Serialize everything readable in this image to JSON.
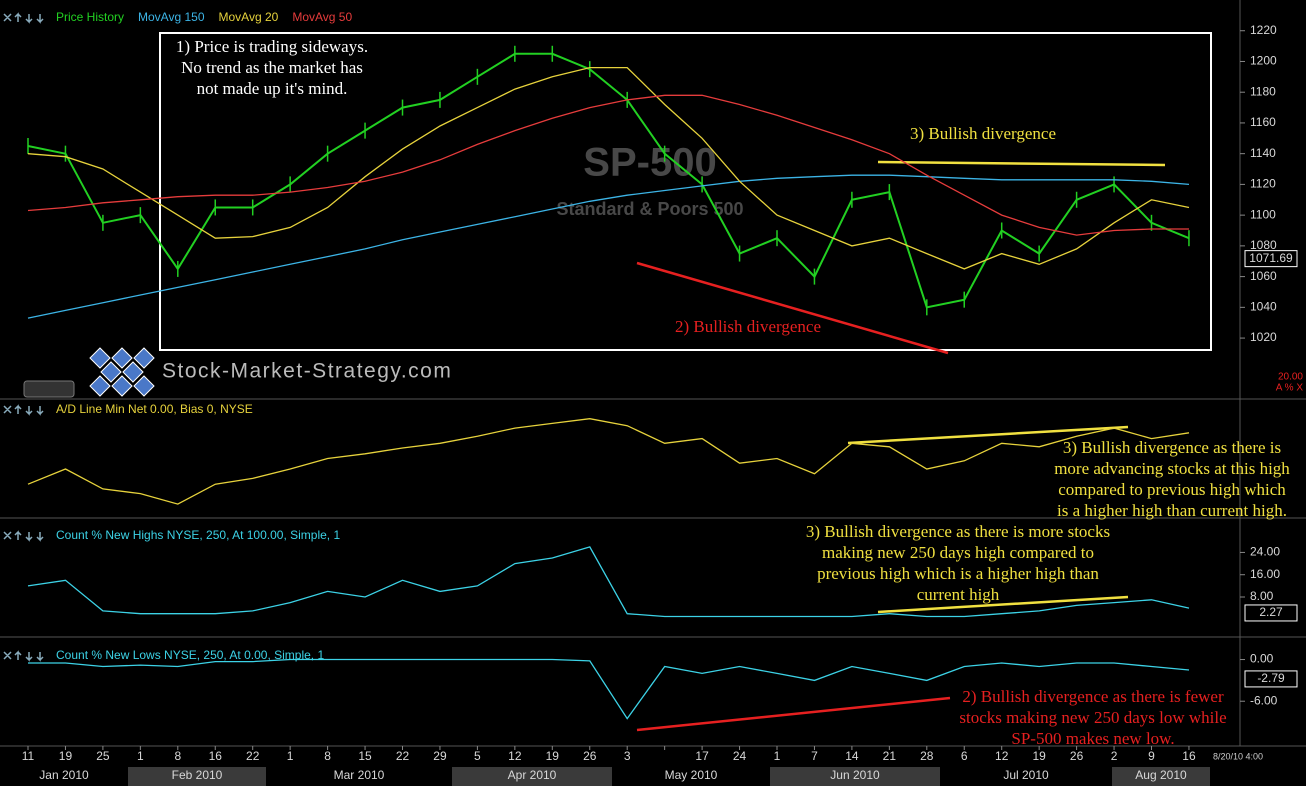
{
  "chart_data": [
    {
      "type": "line",
      "categories": [
        "11",
        "19",
        "25",
        "1",
        "8",
        "16",
        "22",
        "1",
        "8",
        "15",
        "22",
        "29",
        "5",
        "12",
        "19",
        "26",
        "3",
        null,
        "17",
        "24",
        "1",
        "7",
        "14",
        "21",
        "28",
        "6",
        "12",
        "19",
        "26",
        "2",
        "9",
        "16"
      ],
      "x_groups": [
        "Jan 2010",
        "Feb 2010",
        "Mar 2010",
        "Apr 2010",
        "May 2010",
        "Jun 2010",
        "Jul 2010",
        "Aug 2010"
      ],
      "timestamp": "8/20/10 4:00",
      "watermark": "SP-500",
      "subtitle": "Standard & Poors 500",
      "branding": "Stock-Market-Strategy.com",
      "scale_corner": [
        "20.00",
        "A % X"
      ],
      "ylim": [
        981,
        1240
      ],
      "yticks": [
        1020,
        1040,
        1060,
        1080,
        1100,
        1120,
        1140,
        1160,
        1180,
        1200,
        1220
      ],
      "last_value": 1071.69,
      "series": [
        {
          "name": "Price History",
          "color": "#22d022",
          "values": [
            1145,
            1140,
            1095,
            1100,
            1065,
            1105,
            1105,
            1120,
            1140,
            1155,
            1170,
            1175,
            1190,
            1205,
            1205,
            1195,
            1175,
            1140,
            1120,
            1075,
            1085,
            1060,
            1110,
            1115,
            1040,
            1045,
            1090,
            1075,
            1110,
            1120,
            1095,
            1085
          ]
        },
        {
          "name": "MovAvg 150",
          "color": "#3cb4e6",
          "values": [
            1033,
            1038,
            1043,
            1048,
            1053,
            1058,
            1063,
            1068,
            1073,
            1078,
            1084,
            1089,
            1094,
            1099,
            1104,
            1109,
            1113,
            1116,
            1119,
            1122,
            1124,
            1125,
            1126,
            1126,
            1125,
            1124,
            1123,
            1123,
            1123,
            1123,
            1122,
            1120
          ]
        },
        {
          "name": "MovAvg 20",
          "color": "#e6d23c",
          "values": [
            1140,
            1138,
            1130,
            1115,
            1100,
            1085,
            1086,
            1092,
            1105,
            1125,
            1143,
            1158,
            1170,
            1182,
            1190,
            1196,
            1196,
            1172,
            1150,
            1122,
            1100,
            1090,
            1080,
            1085,
            1075,
            1065,
            1075,
            1068,
            1078,
            1095,
            1110,
            1105
          ]
        },
        {
          "name": "MovAvg 50",
          "color": "#e63c3c",
          "values": [
            1103,
            1105,
            1108,
            1110,
            1112,
            1113,
            1113,
            1115,
            1118,
            1122,
            1128,
            1136,
            1146,
            1155,
            1163,
            1170,
            1175,
            1178,
            1178,
            1172,
            1165,
            1157,
            1149,
            1140,
            1126,
            1113,
            1100,
            1092,
            1087,
            1090,
            1091,
            1091
          ]
        }
      ],
      "annotations": [
        {
          "color": "#ffffff",
          "lines": [
            "1) Price is trading sideways.",
            "No trend as the market has",
            "not made up it's mind."
          ]
        },
        {
          "color": "#f0e040",
          "lines": [
            "3) Bullish divergence"
          ]
        },
        {
          "color": "#e62020",
          "lines": [
            "2) Bullish divergence"
          ]
        }
      ]
    },
    {
      "type": "line",
      "title": "A/D Line Min Net 0.00, Bias 0, NYSE",
      "ylim": [
        0,
        100
      ],
      "series": [
        {
          "name": "A/D Line",
          "color": "#e6d23c",
          "values": [
            28,
            41,
            24,
            20,
            11,
            28,
            33,
            41,
            50,
            54,
            59,
            63,
            69,
            76,
            80,
            84,
            78,
            63,
            67,
            46,
            50,
            37,
            63,
            60,
            41,
            48,
            63,
            60,
            69,
            76,
            67,
            72
          ]
        }
      ],
      "annotations": [
        {
          "color": "#f0e040",
          "lines": [
            "3) Bullish divergence as there is",
            "more advancing stocks at this high",
            "compared to previous high which",
            "is a higher high than current high."
          ]
        }
      ]
    },
    {
      "type": "line",
      "title": "Count % New Highs NYSE, 250, At 100.00, Simple, 1",
      "ylim": [
        -6,
        36
      ],
      "yticks": [
        {
          "value": 8,
          "label": "8.00"
        },
        {
          "value": 16,
          "label": "16.00"
        },
        {
          "value": 24,
          "label": "24.00"
        }
      ],
      "last_value": 2.27,
      "series": [
        {
          "name": "New Highs",
          "color": "#3cd2e6",
          "values": [
            12,
            14,
            3,
            2,
            2,
            2,
            3,
            6,
            10,
            8,
            14,
            10,
            12,
            20,
            22,
            26,
            2,
            1,
            1,
            1,
            1,
            1,
            1,
            2,
            1,
            1,
            2,
            3,
            5,
            6,
            7,
            4
          ]
        }
      ],
      "annotations": [
        {
          "color": "#f0e040",
          "lines": [
            "3) Bullish divergence as there is more stocks",
            "making new 250 days high compared to",
            "previous high which is a higher high than",
            "current high"
          ]
        }
      ]
    },
    {
      "type": "line",
      "title": "Count % New Lows NYSE, 250, At 0.00, Simple, 1",
      "ylim": [
        -12.3,
        3.1
      ],
      "yticks": [
        {
          "value": -6,
          "label": "-6.00"
        },
        {
          "value": 0,
          "label": "0.00"
        }
      ],
      "last_value": -2.79,
      "series": [
        {
          "name": "New Lows",
          "color": "#3cd2e6",
          "values": [
            -0.5,
            -0.5,
            -1,
            -0.8,
            -1,
            -0.3,
            -0.3,
            0,
            0,
            0,
            0,
            0,
            0,
            0,
            0,
            -0.2,
            -8.5,
            -1,
            -2,
            -1,
            -2,
            -3,
            -1,
            -2,
            -3,
            -1,
            -0.5,
            -1,
            -0.5,
            -0.5,
            -1,
            -1.5
          ]
        }
      ],
      "annotations": [
        {
          "color": "#e62020",
          "lines": [
            "2) Bullish divergence as there is fewer",
            "stocks making new 250 days low while",
            "SP-500 makes new low."
          ]
        }
      ]
    }
  ]
}
